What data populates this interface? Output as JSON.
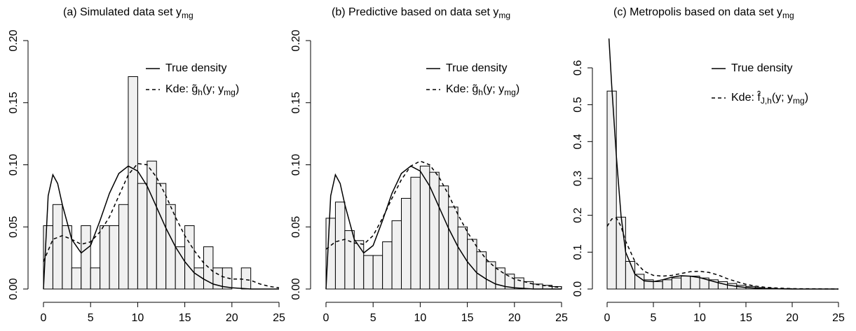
{
  "chart_data": [
    {
      "type": "histogram",
      "title": [
        "(a) Simulated data set y",
        "mg"
      ],
      "bins": [
        0,
        1,
        2,
        3,
        4,
        5,
        6,
        7,
        8,
        9,
        10,
        11,
        12,
        13,
        14,
        15,
        16,
        17,
        18,
        19,
        20,
        21,
        22
      ],
      "values": [
        0.051,
        0.068,
        0.051,
        0.017,
        0.051,
        0.017,
        0.051,
        0.051,
        0.068,
        0.171,
        0.085,
        0.103,
        0.085,
        0.068,
        0.034,
        0.051,
        0.017,
        0.034,
        0.017,
        0.017,
        0,
        0.017
      ],
      "bar_color": "#f0f0f0",
      "xlim": [
        0,
        25
      ],
      "xticks": [
        0,
        5,
        10,
        15,
        20,
        25
      ],
      "ylim": [
        0,
        0.2
      ],
      "yticks": [
        {
          "value": 0,
          "label": "0.00"
        },
        {
          "value": 0.05,
          "label": "0.05"
        },
        {
          "value": 0.1,
          "label": "0.10"
        },
        {
          "value": 0.15,
          "label": "0.15"
        },
        {
          "value": 0.2,
          "label": "0.20"
        }
      ],
      "series": [
        {
          "name": "True density",
          "color": "#000000",
          "dashed": false,
          "x": [
            0,
            0.5,
            1,
            1.5,
            2,
            3,
            4,
            5,
            6,
            7,
            8,
            9,
            10,
            11,
            12,
            13,
            14,
            15,
            16,
            17,
            18,
            19,
            20,
            22,
            25
          ],
          "values": [
            0,
            0.075,
            0.092,
            0.085,
            0.068,
            0.04,
            0.029,
            0.035,
            0.055,
            0.077,
            0.093,
            0.099,
            0.095,
            0.083,
            0.066,
            0.049,
            0.034,
            0.022,
            0.013,
            0.008,
            0.004,
            0.002,
            0.001,
            0,
            0
          ]
        },
        {
          "name": [
            "Kde: g̃",
            "h",
            "(y; y",
            "mg",
            ")"
          ],
          "color": "#000000",
          "dashed": true,
          "x": [
            0,
            1,
            2,
            3,
            4,
            5,
            6,
            7,
            8,
            9,
            10,
            11,
            12,
            13,
            14,
            15,
            16,
            17,
            18,
            19,
            20,
            21,
            22,
            23,
            24,
            25
          ],
          "values": [
            0.022,
            0.04,
            0.043,
            0.04,
            0.036,
            0.038,
            0.046,
            0.058,
            0.075,
            0.092,
            0.101,
            0.1,
            0.09,
            0.075,
            0.058,
            0.043,
            0.031,
            0.021,
            0.014,
            0.01,
            0.008,
            0.008,
            0.007,
            0.004,
            0.002,
            0.001
          ]
        }
      ]
    },
    {
      "type": "histogram",
      "title": [
        "(b) Predictive based on data set y",
        "mg"
      ],
      "bins": [
        0,
        1,
        2,
        3,
        4,
        5,
        6,
        7,
        8,
        9,
        10,
        11,
        12,
        13,
        14,
        15,
        16,
        17,
        18,
        19,
        20,
        21,
        22,
        23,
        24,
        25
      ],
      "values": [
        0.057,
        0.07,
        0.047,
        0.039,
        0.027,
        0.027,
        0.038,
        0.055,
        0.073,
        0.09,
        0.099,
        0.094,
        0.083,
        0.066,
        0.05,
        0.04,
        0.03,
        0.022,
        0.017,
        0.012,
        0.009,
        0.006,
        0.004,
        0.003,
        0.002
      ],
      "bar_color": "#f0f0f0",
      "xlim": [
        0,
        25
      ],
      "xticks": [
        0,
        5,
        10,
        15,
        20,
        25
      ],
      "ylim": [
        0,
        0.2
      ],
      "yticks": [
        {
          "value": 0,
          "label": "0.00"
        },
        {
          "value": 0.05,
          "label": "0.05"
        },
        {
          "value": 0.1,
          "label": "0.10"
        },
        {
          "value": 0.15,
          "label": "0.15"
        },
        {
          "value": 0.2,
          "label": "0.20"
        }
      ],
      "series": [
        {
          "name": "True density",
          "color": "#000000",
          "dashed": false,
          "x": [
            0,
            0.5,
            1,
            1.5,
            2,
            3,
            4,
            5,
            6,
            7,
            8,
            9,
            10,
            11,
            12,
            13,
            14,
            15,
            16,
            17,
            18,
            19,
            20,
            22,
            25
          ],
          "values": [
            0,
            0.075,
            0.092,
            0.085,
            0.068,
            0.04,
            0.029,
            0.035,
            0.055,
            0.077,
            0.093,
            0.099,
            0.095,
            0.083,
            0.066,
            0.049,
            0.034,
            0.022,
            0.013,
            0.008,
            0.004,
            0.002,
            0.001,
            0,
            0
          ]
        },
        {
          "name": [
            "Kde: g̃",
            "h",
            "(y; y",
            "mg",
            ")"
          ],
          "color": "#000000",
          "dashed": true,
          "x": [
            0,
            1,
            2,
            3,
            4,
            5,
            6,
            7,
            8,
            9,
            10,
            11,
            12,
            13,
            14,
            15,
            16,
            17,
            18,
            19,
            20,
            21,
            22,
            23,
            24,
            25
          ],
          "values": [
            0.032,
            0.038,
            0.04,
            0.037,
            0.036,
            0.043,
            0.057,
            0.073,
            0.088,
            0.099,
            0.103,
            0.1,
            0.09,
            0.076,
            0.06,
            0.046,
            0.034,
            0.024,
            0.017,
            0.012,
            0.008,
            0.006,
            0.004,
            0.003,
            0.002,
            0.001
          ]
        }
      ]
    },
    {
      "type": "histogram",
      "title": [
        "(c) Metropolis based on data set y",
        "mg"
      ],
      "bins": [
        0,
        1,
        2,
        3,
        4,
        5,
        6,
        7,
        8,
        9,
        10,
        11,
        12,
        13,
        14,
        15,
        16,
        17,
        18,
        19,
        20
      ],
      "values": [
        0.537,
        0.195,
        0.075,
        0.04,
        0.025,
        0.02,
        0.025,
        0.03,
        0.035,
        0.035,
        0.03,
        0.025,
        0.02,
        0.015,
        0.01,
        0.007,
        0.004,
        0.002,
        0.001,
        0.001
      ],
      "bar_color": "#f0f0f0",
      "xlim": [
        0,
        25
      ],
      "xticks": [
        0,
        5,
        10,
        15,
        20,
        25
      ],
      "ylim": [
        0,
        0.674
      ],
      "yticks": [
        {
          "value": 0,
          "label": "0.0"
        },
        0.1,
        0.2,
        0.3,
        0.4,
        0.5,
        0.6
      ],
      "series": [
        {
          "name": "True density",
          "color": "#000000",
          "dashed": false,
          "x": [
            0.15,
            0.5,
            1,
            1.5,
            2,
            3,
            4,
            5,
            6,
            7,
            8,
            9,
            10,
            11,
            12,
            13,
            14,
            15,
            17,
            20,
            25
          ],
          "values": [
            0.7,
            0.55,
            0.36,
            0.2,
            0.1,
            0.04,
            0.022,
            0.02,
            0.025,
            0.032,
            0.036,
            0.035,
            0.031,
            0.024,
            0.017,
            0.011,
            0.007,
            0.004,
            0.001,
            0,
            0
          ]
        },
        {
          "name": [
            "Kde: f̂",
            "J,h",
            "(y; y",
            "mg",
            ")"
          ],
          "color": "#000000",
          "dashed": true,
          "x": [
            0,
            0.5,
            1,
            1.5,
            2,
            3,
            4,
            5,
            6,
            7,
            8,
            9,
            10,
            11,
            12,
            13,
            14,
            15,
            16,
            17,
            18,
            20,
            25
          ],
          "values": [
            0.17,
            0.19,
            0.193,
            0.17,
            0.13,
            0.075,
            0.048,
            0.037,
            0.035,
            0.037,
            0.042,
            0.047,
            0.048,
            0.045,
            0.038,
            0.028,
            0.02,
            0.013,
            0.008,
            0.005,
            0.003,
            0.001,
            0
          ]
        }
      ]
    }
  ]
}
